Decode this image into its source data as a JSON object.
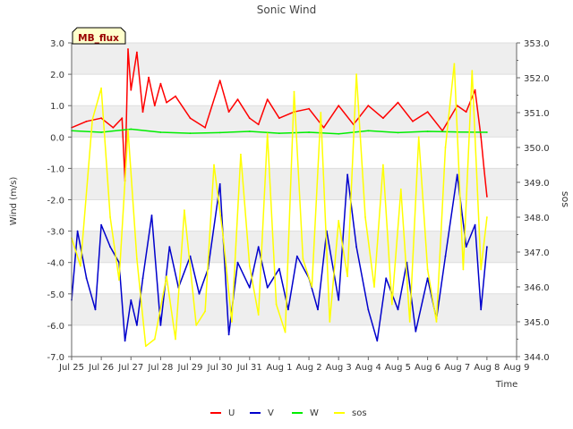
{
  "chart_data": {
    "type": "line",
    "title": "Sonic Wind",
    "badge": "MB_flux",
    "xlabel": "Time",
    "ylabel": "Wind (m/s)",
    "y2label": "sos",
    "ylim": [
      -7.0,
      3.0
    ],
    "y2lim": [
      344.0,
      353.0
    ],
    "xlim": [
      0,
      15
    ],
    "y_ticks": [
      3.0,
      2.0,
      1.0,
      0.0,
      -1.0,
      -2.0,
      -3.0,
      -4.0,
      -5.0,
      -6.0,
      -7.0
    ],
    "y_tick_labels": [
      "3.0",
      "2.0",
      "1.0",
      "0.0",
      "-1.0",
      "-2.0",
      "-3.0",
      "-4.0",
      "-5.0",
      "-6.0",
      "-7.0"
    ],
    "y2_ticks": [
      353.0,
      352.0,
      351.0,
      350.0,
      349.0,
      348.0,
      347.0,
      346.0,
      345.0,
      344.0
    ],
    "y2_tick_labels": [
      "353.0",
      "352.0",
      "351.0",
      "350.0",
      "349.0",
      "348.0",
      "347.0",
      "346.0",
      "345.0",
      "344.0"
    ],
    "x_ticks": [
      0,
      1,
      2,
      3,
      4,
      5,
      6,
      7,
      8,
      9,
      10,
      11,
      12,
      13,
      14,
      15
    ],
    "x_tick_labels": [
      "Jul 25",
      "Jul 26",
      "Jul 27",
      "Jul 28",
      "Jul 29",
      "Jul 30",
      "Jul 31",
      "Aug 1",
      "Aug 2",
      "Aug 3",
      "Aug 4",
      "Aug 5",
      "Aug 6",
      "Aug 7",
      "Aug 8",
      "Aug 9"
    ],
    "legend_position": "bottom-center",
    "series": [
      {
        "name": "U",
        "color": "#ff0000",
        "axis": "left",
        "x": [
          0.0,
          0.5,
          1.0,
          1.4,
          1.7,
          1.8,
          1.9,
          2.0,
          2.2,
          2.4,
          2.6,
          2.8,
          3.0,
          3.2,
          3.5,
          4.0,
          4.5,
          5.0,
          5.3,
          5.6,
          6.0,
          6.3,
          6.6,
          7.0,
          7.5,
          8.0,
          8.5,
          9.0,
          9.5,
          10.0,
          10.5,
          11.0,
          11.5,
          12.0,
          12.5,
          13.0,
          13.3,
          13.6,
          13.8,
          13.9,
          14.0
        ],
        "values": [
          0.3,
          0.5,
          0.6,
          0.3,
          0.6,
          -1.4,
          2.8,
          1.5,
          2.7,
          0.8,
          1.9,
          1.0,
          1.7,
          1.1,
          1.3,
          0.6,
          0.3,
          1.8,
          0.8,
          1.2,
          0.6,
          0.4,
          1.2,
          0.6,
          0.8,
          0.9,
          0.3,
          1.0,
          0.4,
          1.0,
          0.6,
          1.1,
          0.5,
          0.8,
          0.2,
          1.0,
          0.8,
          1.5,
          0.0,
          -1.0,
          -1.9
        ]
      },
      {
        "name": "V",
        "color": "#0000cc",
        "axis": "left",
        "x": [
          0.0,
          0.2,
          0.5,
          0.8,
          1.0,
          1.3,
          1.6,
          1.8,
          2.0,
          2.2,
          2.4,
          2.7,
          3.0,
          3.3,
          3.6,
          4.0,
          4.3,
          4.6,
          5.0,
          5.3,
          5.6,
          6.0,
          6.3,
          6.6,
          7.0,
          7.3,
          7.6,
          8.0,
          8.3,
          8.6,
          9.0,
          9.3,
          9.6,
          10.0,
          10.3,
          10.6,
          11.0,
          11.3,
          11.6,
          12.0,
          12.3,
          12.6,
          13.0,
          13.3,
          13.6,
          13.8,
          14.0
        ],
        "values": [
          -5.2,
          -3.0,
          -4.5,
          -5.5,
          -2.8,
          -3.5,
          -4.0,
          -6.5,
          -5.2,
          -6.0,
          -4.5,
          -2.5,
          -6.0,
          -3.5,
          -4.8,
          -3.8,
          -5.0,
          -4.2,
          -1.5,
          -6.3,
          -4.0,
          -4.8,
          -3.5,
          -4.8,
          -4.2,
          -5.5,
          -3.8,
          -4.5,
          -5.5,
          -3.0,
          -5.2,
          -1.2,
          -3.5,
          -5.5,
          -6.5,
          -4.5,
          -5.5,
          -4.0,
          -6.2,
          -4.5,
          -5.8,
          -3.8,
          -1.2,
          -3.5,
          -2.8,
          -5.5,
          -3.5
        ]
      },
      {
        "name": "W",
        "color": "#00ee00",
        "axis": "left",
        "x": [
          0.0,
          1.0,
          2.0,
          3.0,
          4.0,
          5.0,
          6.0,
          7.0,
          8.0,
          9.0,
          10.0,
          11.0,
          12.0,
          13.0,
          14.0
        ],
        "values": [
          0.2,
          0.15,
          0.25,
          0.15,
          0.12,
          0.14,
          0.18,
          0.12,
          0.15,
          0.1,
          0.2,
          0.14,
          0.18,
          0.16,
          0.15
        ]
      },
      {
        "name": "sos",
        "color": "#ffff00",
        "axis": "right",
        "x": [
          0.0,
          0.3,
          0.7,
          1.0,
          1.3,
          1.6,
          1.9,
          2.2,
          2.5,
          2.8,
          3.2,
          3.5,
          3.8,
          4.2,
          4.5,
          4.8,
          5.1,
          5.4,
          5.7,
          6.0,
          6.3,
          6.6,
          6.9,
          7.2,
          7.5,
          7.8,
          8.1,
          8.4,
          8.7,
          9.0,
          9.3,
          9.6,
          9.9,
          10.2,
          10.5,
          10.8,
          11.1,
          11.4,
          11.7,
          12.0,
          12.3,
          12.6,
          12.9,
          13.2,
          13.5,
          13.8,
          14.0
        ],
        "values": [
          347.4,
          346.6,
          350.8,
          351.7,
          348.0,
          346.2,
          350.5,
          346.8,
          344.3,
          344.5,
          346.3,
          344.5,
          348.2,
          344.9,
          345.3,
          349.5,
          347.5,
          345.0,
          349.8,
          346.6,
          345.2,
          350.4,
          345.5,
          344.7,
          351.6,
          346.8,
          346.0,
          351.0,
          345.0,
          347.9,
          346.3,
          352.1,
          348.0,
          346.0,
          349.5,
          345.5,
          348.8,
          345.0,
          350.3,
          346.5,
          345.0,
          350.0,
          352.4,
          346.5,
          352.2,
          346.5,
          348.0
        ]
      }
    ]
  }
}
